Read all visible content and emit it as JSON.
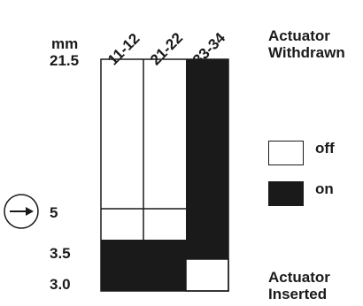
{
  "columns": [
    "11-12",
    "21-22",
    "33-34"
  ],
  "unit": "mm",
  "levels": {
    "top": "21.5",
    "mid": "5",
    "lower": "3.5",
    "bottom": "3.0"
  },
  "labels": {
    "withdrawn": [
      "Actuator",
      "Withdrawn"
    ],
    "inserted": [
      "Actuator",
      "Inserted"
    ]
  },
  "legend": {
    "off": "off",
    "on": "on"
  },
  "colors": {
    "on": "#1a1a1a",
    "off": "#ffffff",
    "line": "#1a1a1a"
  },
  "icons": {
    "position_marker": "circled-right-arrow-icon"
  }
}
